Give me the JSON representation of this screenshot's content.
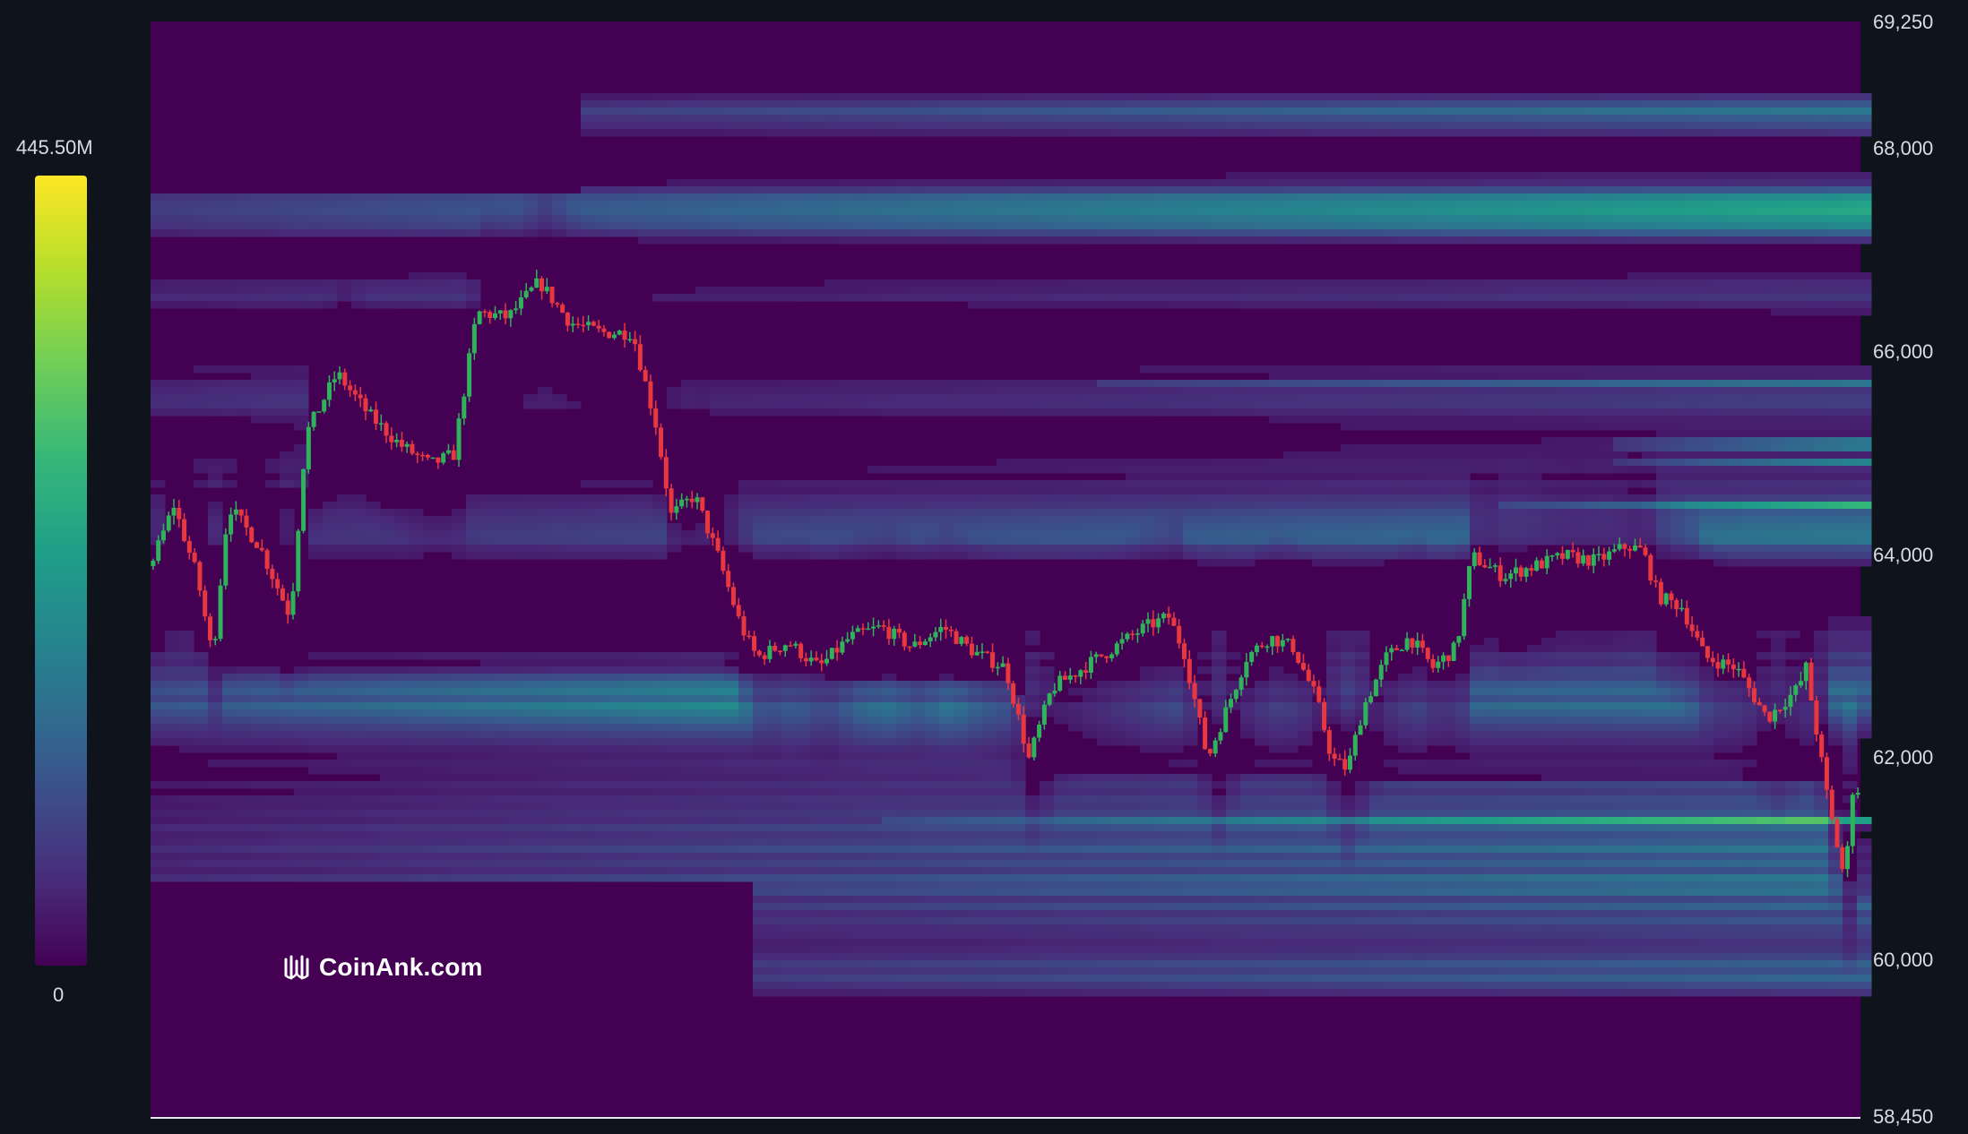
{
  "colorbar": {
    "max_label": "445.50M",
    "min_label": "0"
  },
  "watermark": {
    "text": "CoinAnk.com",
    "icon": "coinank-logo-icon"
  },
  "colors": {
    "background": "#0f131b",
    "up_candle": "#2fb35a",
    "down_candle": "#e8373f",
    "scale": [
      "#440154",
      "#482878",
      "#3e4989",
      "#31688e",
      "#26828e",
      "#1f9e89",
      "#35b779",
      "#6ece58",
      "#b5de2b",
      "#fde725"
    ]
  },
  "chart_data": {
    "type": "heatmap",
    "title": "",
    "subtitle": "",
    "ylim": [
      58450,
      69250
    ],
    "y_ticks": [
      {
        "value": 69250,
        "label": "69,250"
      },
      {
        "value": 68000,
        "label": "68,000"
      },
      {
        "value": 66000,
        "label": "66,000"
      },
      {
        "value": 64000,
        "label": "64,000"
      },
      {
        "value": 62000,
        "label": "62,000"
      },
      {
        "value": 60000,
        "label": "60,000"
      },
      {
        "value": 58450,
        "label": "58,450"
      }
    ],
    "color_scale": {
      "min": 0,
      "max": 445500000,
      "min_label": "0",
      "max_label": "445.50M"
    },
    "price_keypoints": [
      [
        0,
        63900
      ],
      [
        1.5,
        64500
      ],
      [
        3,
        63800
      ],
      [
        4,
        63000
      ],
      [
        5,
        64500
      ],
      [
        7,
        64100
      ],
      [
        9,
        63400
      ],
      [
        10,
        65200
      ],
      [
        12,
        65800
      ],
      [
        14,
        65400
      ],
      [
        16,
        65100
      ],
      [
        18,
        64900
      ],
      [
        19.5,
        65000
      ],
      [
        21,
        66400
      ],
      [
        23,
        66350
      ],
      [
        25,
        66700
      ],
      [
        27,
        66300
      ],
      [
        29,
        66200
      ],
      [
        31,
        66200
      ],
      [
        32.5,
        65300
      ],
      [
        33.5,
        64400
      ],
      [
        35,
        64600
      ],
      [
        36.5,
        64000
      ],
      [
        38,
        63300
      ],
      [
        39,
        63000
      ],
      [
        41,
        63150
      ],
      [
        43,
        62900
      ],
      [
        45,
        63200
      ],
      [
        47,
        63300
      ],
      [
        49,
        63100
      ],
      [
        51,
        63300
      ],
      [
        53,
        63050
      ],
      [
        55,
        62900
      ],
      [
        56.5,
        62000
      ],
      [
        58,
        62700
      ],
      [
        60,
        62900
      ],
      [
        62,
        63100
      ],
      [
        64,
        63300
      ],
      [
        65.5,
        63400
      ],
      [
        66.5,
        63050
      ],
      [
        68,
        62000
      ],
      [
        69.5,
        62600
      ],
      [
        70.5,
        63000
      ],
      [
        72,
        63200
      ],
      [
        73.5,
        63100
      ],
      [
        75,
        62600
      ],
      [
        76,
        62000
      ],
      [
        77,
        61900
      ],
      [
        78,
        62500
      ],
      [
        79.5,
        63000
      ],
      [
        81,
        63200
      ],
      [
        82.5,
        62900
      ],
      [
        84,
        63100
      ],
      [
        85,
        64000
      ],
      [
        87,
        63800
      ],
      [
        89,
        63900
      ],
      [
        91,
        64000
      ],
      [
        93,
        63950
      ],
      [
        95,
        64100
      ],
      [
        96,
        64050
      ],
      [
        97,
        63600
      ],
      [
        98.5,
        63500
      ],
      [
        100,
        63000
      ],
      [
        102,
        62900
      ],
      [
        104,
        62400
      ],
      [
        106,
        62700
      ],
      [
        106.5,
        62900
      ],
      [
        108,
        61500
      ],
      [
        109,
        60800
      ],
      [
        109.5,
        61700
      ]
    ]
  }
}
